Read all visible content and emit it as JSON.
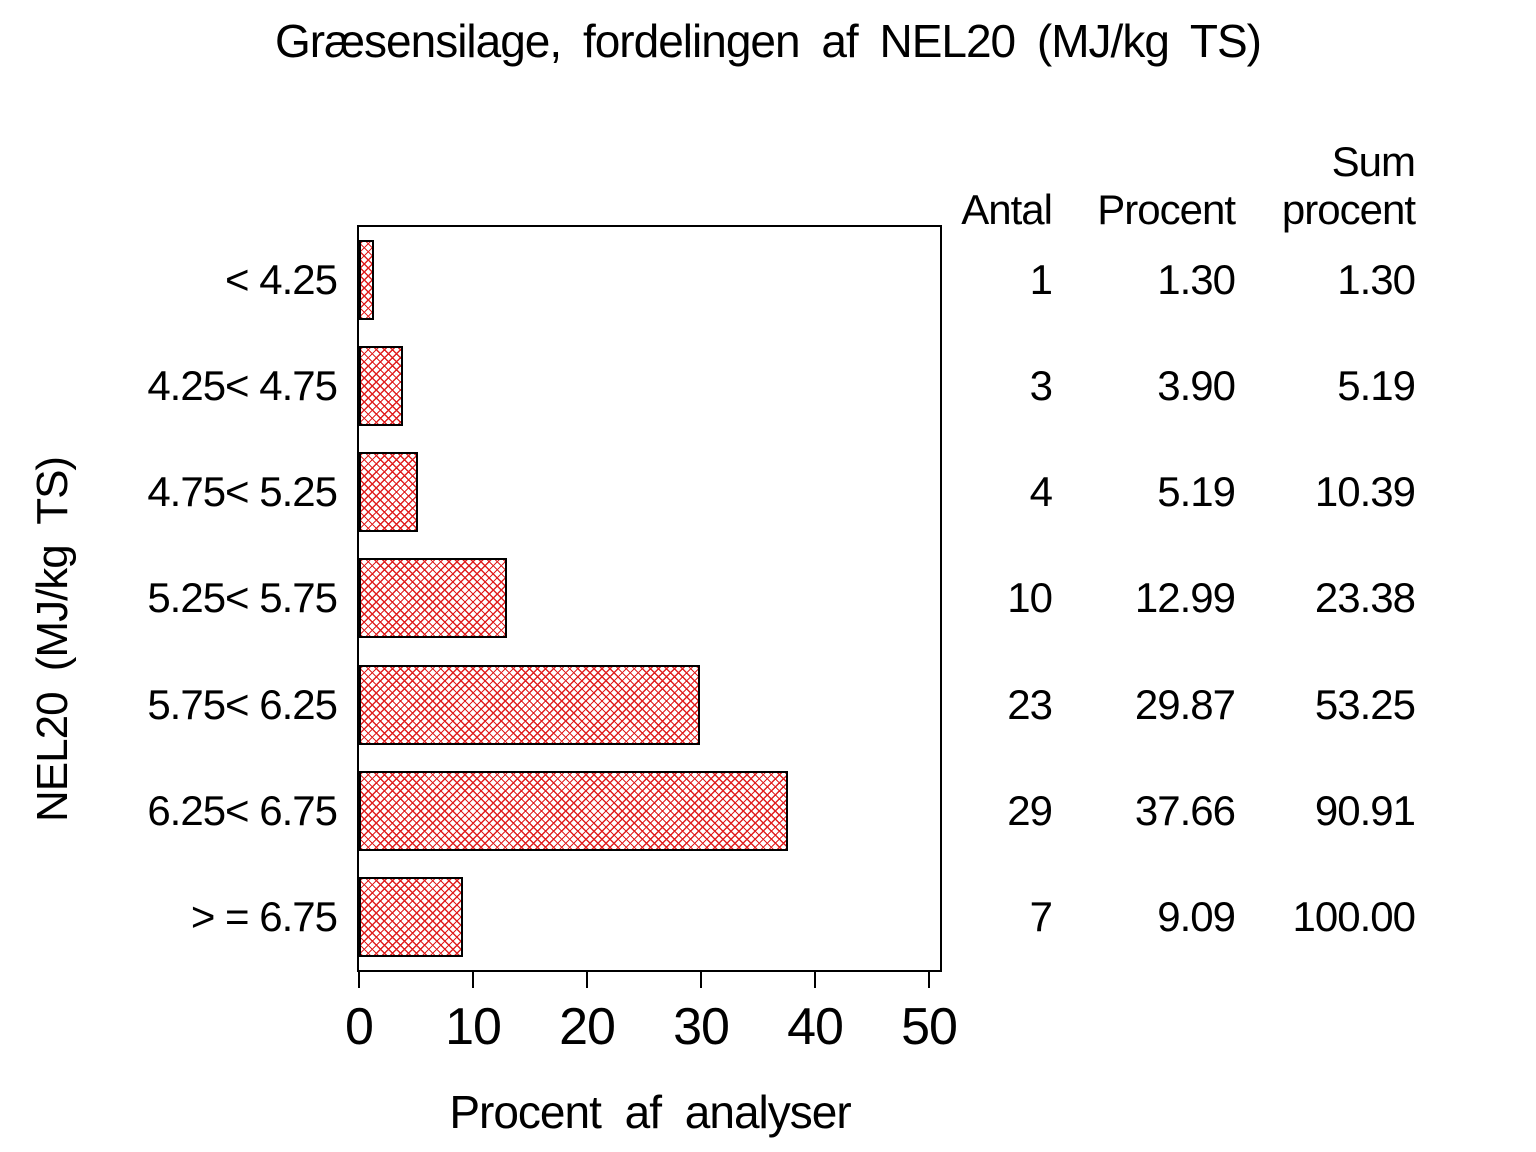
{
  "title": "Græsensilage, fordelingen af NEL20 (MJ/kg TS)",
  "y_axis_title": "NEL20 (MJ/kg TS)",
  "x_axis_title": "Procent af analyser",
  "x_ticks": [
    "0",
    "10",
    "20",
    "30",
    "40",
    "50"
  ],
  "table": {
    "headers": {
      "antal": "Antal",
      "procent": "Procent",
      "sum_line1": "Sum",
      "sum_line2": "procent"
    }
  },
  "rows": [
    {
      "category": "< 4.25",
      "antal": "1",
      "procent": "1.30",
      "sum_procent": "1.30",
      "value": 1.3
    },
    {
      "category": "4.25< 4.75",
      "antal": "3",
      "procent": "3.90",
      "sum_procent": "5.19",
      "value": 3.9
    },
    {
      "category": "4.75< 5.25",
      "antal": "4",
      "procent": "5.19",
      "sum_procent": "10.39",
      "value": 5.19
    },
    {
      "category": "5.25< 5.75",
      "antal": "10",
      "procent": "12.99",
      "sum_procent": "23.38",
      "value": 12.99
    },
    {
      "category": "5.75< 6.25",
      "antal": "23",
      "procent": "29.87",
      "sum_procent": "53.25",
      "value": 29.87
    },
    {
      "category": "6.25< 6.75",
      "antal": "29",
      "procent": "37.66",
      "sum_procent": "90.91",
      "value": 37.66
    },
    {
      "category": "> = 6.75",
      "antal": "7",
      "procent": "9.09",
      "sum_procent": "100.00",
      "value": 9.09
    }
  ],
  "chart_data": {
    "type": "bar",
    "orientation": "horizontal",
    "title": "Græsensilage, fordelingen af NEL20 (MJ/kg TS)",
    "categories": [
      "< 4.25",
      "4.25< 4.75",
      "4.75< 5.25",
      "5.25< 5.75",
      "5.75< 6.25",
      "6.25< 6.75",
      "> = 6.75"
    ],
    "values": [
      1.3,
      3.9,
      5.19,
      12.99,
      29.87,
      37.66,
      9.09
    ],
    "counts": [
      1,
      3,
      4,
      10,
      23,
      29,
      7
    ],
    "cumulative_percent": [
      1.3,
      5.19,
      10.39,
      23.38,
      53.25,
      90.91,
      100.0
    ],
    "xlabel": "Procent af analyser",
    "ylabel": "NEL20 (MJ/kg TS)",
    "xlim": [
      0,
      50
    ],
    "x_tick_step": 10,
    "grid": false,
    "legend": false,
    "bar_style": "red diagonal crosshatch with black outline"
  },
  "colors": {
    "bar_hatch": "#e02020",
    "bar_background": "#ffffff",
    "bar_border": "#000000",
    "frame": "#000000",
    "text": "#000000",
    "background": "#ffffff"
  }
}
